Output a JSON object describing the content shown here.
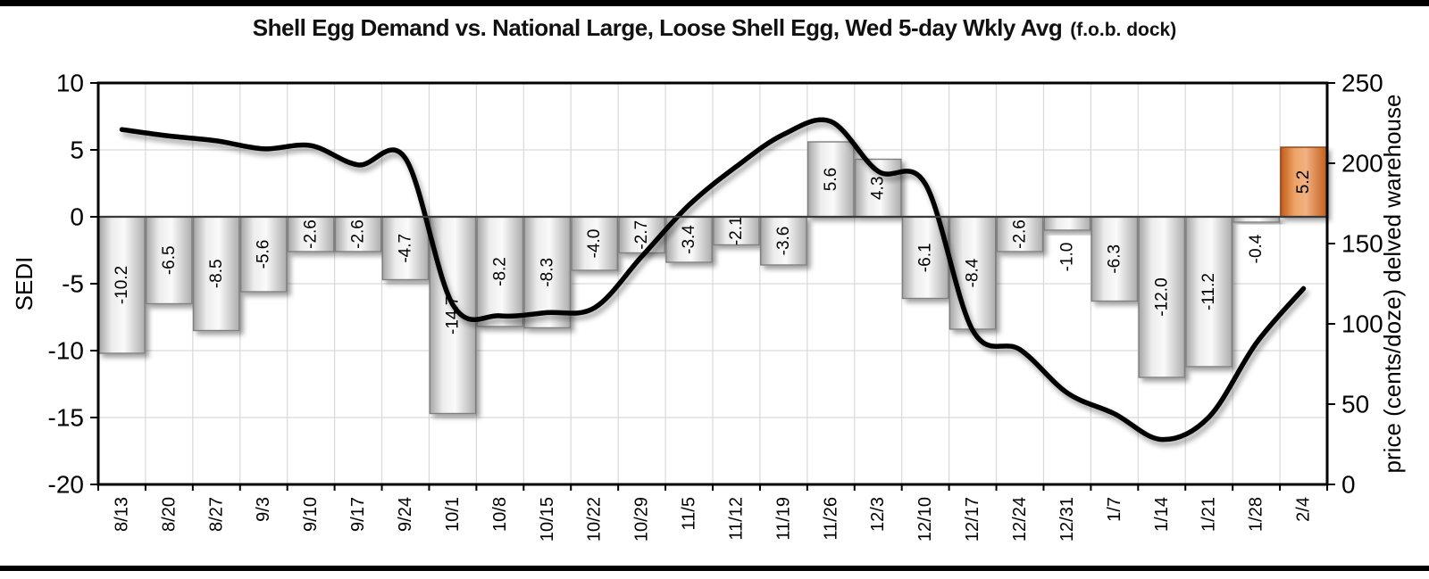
{
  "title": {
    "main": "Shell Egg Demand vs. National Large, Loose Shell Egg, Wed 5-day Wkly Avg",
    "paren": "(f.o.b. dock)"
  },
  "chart_data": {
    "type": "bar",
    "subtype": "combo-bar-line-dual-axis",
    "title": "Shell Egg Demand vs. National Large, Loose Shell Egg, Wed 5-day Wkly Avg (f.o.b. dock)",
    "grid": "on",
    "legend": "none",
    "categories": [
      "8/13",
      "8/20",
      "8/27",
      "9/3",
      "9/10",
      "9/17",
      "9/24",
      "10/1",
      "10/8",
      "10/15",
      "10/22",
      "10/29",
      "11/5",
      "11/12",
      "11/19",
      "11/26",
      "12/3",
      "12/10",
      "12/17",
      "12/24",
      "12/31",
      "1/7",
      "1/14",
      "1/21",
      "1/28",
      "2/4"
    ],
    "series": [
      {
        "name": "SEDI",
        "type": "bar",
        "axis": "left",
        "values": [
          -10.2,
          -6.5,
          -8.5,
          -5.6,
          -2.6,
          -2.6,
          -4.7,
          -14.7,
          -8.2,
          -8.3,
          -4.0,
          -2.7,
          -3.4,
          -2.1,
          -3.6,
          5.6,
          4.3,
          -6.1,
          -8.4,
          -2.6,
          -1.0,
          -6.3,
          -12.0,
          -11.2,
          -0.4,
          5.2
        ]
      },
      {
        "name": "price",
        "type": "line",
        "axis": "right",
        "values": [
          221,
          217,
          214,
          209,
          211,
          199,
          203,
          112,
          105,
          107,
          110,
          142,
          174,
          198,
          218,
          226,
          195,
          187,
          96,
          84,
          57,
          44,
          28,
          42,
          88,
          122
        ]
      }
    ],
    "left_axis": {
      "label": "SEDI",
      "min": -20,
      "max": 10,
      "ticks": [
        10,
        5,
        0,
        -5,
        -10,
        -15,
        -20
      ]
    },
    "right_axis": {
      "label": "price (cents/doze) delved warehouse",
      "min": 0,
      "max": 250,
      "ticks": [
        250,
        200,
        150,
        100,
        50,
        0
      ]
    },
    "highlight_category": "2/4",
    "colors": {
      "bar_body": "#f2f2f2",
      "bar_edge_dark": "#a6a6a6",
      "bar_stroke": "#7f7f7f",
      "highlight_body": "#f2b183",
      "highlight_edge_dark": "#bf5a1a",
      "highlight_stroke": "#8a4513",
      "line": "#000000",
      "gridline": "#d9d9d9",
      "zero_line": "#3a3a3a",
      "plot_border": "#000000",
      "text": "#000000"
    }
  }
}
